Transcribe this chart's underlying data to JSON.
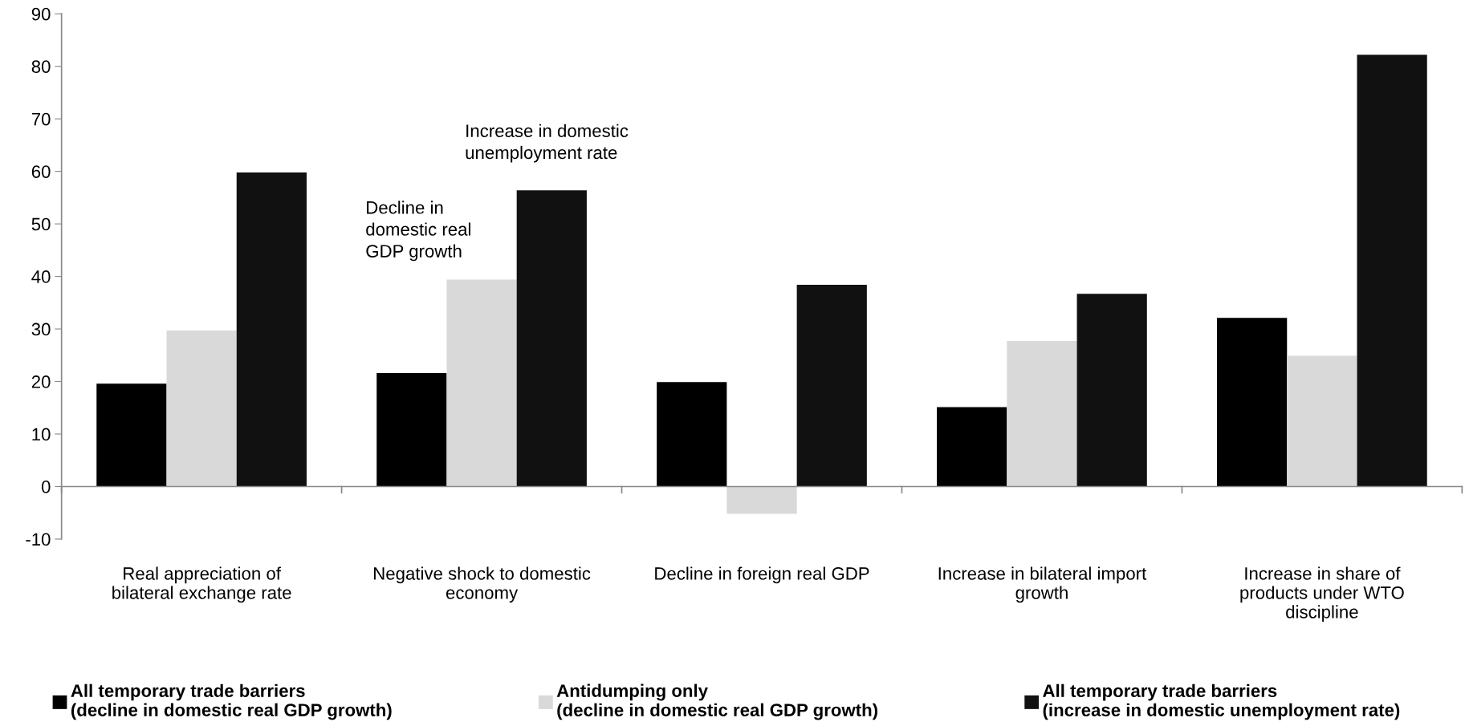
{
  "chart_data": {
    "type": "bar",
    "categories": [
      "Real appreciation of\nbilateral exchange rate",
      "Negative shock to domestic\neconomy",
      "Decline in foreign real GDP",
      "Increase in bilateral import\ngrowth",
      "Increase in share of\nproducts under WTO\ndiscipline"
    ],
    "series": [
      {
        "name": "All temporary trade barriers\n(decline in domestic real GDP growth)",
        "color": "#000000",
        "values": [
          19.6,
          21.6,
          19.9,
          15.1,
          32.1
        ]
      },
      {
        "name": "Antidumping only\n(decline in domestic real GDP growth)",
        "color": "#d9d9d9",
        "values": [
          29.7,
          39.4,
          -5.2,
          27.7,
          24.9
        ]
      },
      {
        "name": "All temporary trade barriers\n(increase in domestic unemployment rate)",
        "color": "#111111",
        "values": [
          59.8,
          56.4,
          38.4,
          36.7,
          82.2
        ]
      }
    ],
    "ylim": [
      -10,
      90
    ],
    "yticks": [
      -10,
      0,
      10,
      20,
      30,
      40,
      50,
      60,
      70,
      80,
      90
    ],
    "legend": "bottom",
    "annotations": [
      "Decline in\ndomestic real\nGDP growth",
      "Increase in domestic\nunemployment rate"
    ]
  }
}
